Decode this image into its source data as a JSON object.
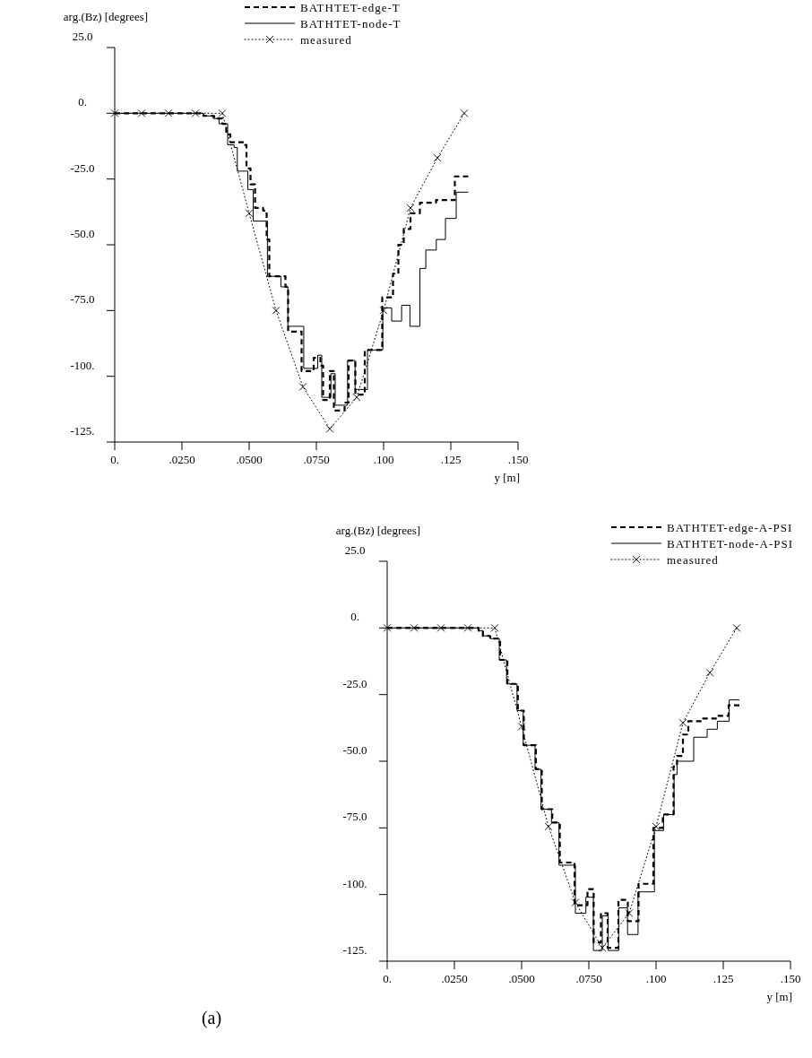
{
  "chart_data": [
    {
      "type": "line",
      "xlabel": "y [m]",
      "ylabel": "arg.(Bz) [degrees]",
      "xlim": [
        0,
        0.15
      ],
      "ylim": [
        -125,
        25
      ],
      "xticks": [
        {
          "value": 0,
          "label": "0."
        },
        {
          "value": 0.025,
          "label": ".0250"
        },
        {
          "value": 0.05,
          "label": ".0500"
        },
        {
          "value": 0.075,
          "label": ".0750"
        },
        {
          "value": 0.1,
          "label": ".100"
        },
        {
          "value": 0.125,
          "label": ".125"
        },
        {
          "value": 0.15,
          "label": ".150"
        }
      ],
      "yticks": [
        {
          "value": 25,
          "label": "25.0"
        },
        {
          "value": 0,
          "label": "0."
        },
        {
          "value": -25,
          "label": "-25.0"
        },
        {
          "value": -50,
          "label": "-50.0"
        },
        {
          "value": -75,
          "label": "-75.0"
        },
        {
          "value": -100,
          "label": "-100."
        },
        {
          "value": -125,
          "label": "-125."
        }
      ],
      "legend": "top",
      "grid": false,
      "series": [
        {
          "name": "BATHTET-edge-T",
          "type": "step",
          "color": "#000000",
          "line_style": "dashed",
          "marker": "none",
          "x": [
            0,
            0.033,
            0.037,
            0.04,
            0.0415,
            0.043,
            0.0484,
            0.049,
            0.0505,
            0.0522,
            0.0552,
            0.0565,
            0.0575,
            0.0635,
            0.0645,
            0.0695,
            0.074,
            0.0765,
            0.0775,
            0.08,
            0.0815,
            0.0855,
            0.087,
            0.0895,
            0.093,
            0.0995,
            0.1035,
            0.1055,
            0.1075,
            0.11,
            0.1135,
            0.1195,
            0.1265,
            0.1315
          ],
          "values": [
            0,
            -1,
            -2,
            -4,
            -8,
            -11,
            -12,
            -21,
            -27,
            -36,
            -37,
            -48,
            -62,
            -66,
            -83,
            -98,
            -93,
            -96,
            -109,
            -98,
            -113,
            -110,
            -94,
            -107,
            -90,
            -70,
            -61,
            -50,
            -44,
            -38,
            -34,
            -33,
            -24,
            -24
          ]
        },
        {
          "name": "BATHTET-node-T",
          "type": "step",
          "color": "#000000",
          "line_style": "solid",
          "marker": "none",
          "x": [
            0,
            0.033,
            0.0366,
            0.0388,
            0.042,
            0.0444,
            0.0456,
            0.0495,
            0.0515,
            0.0568,
            0.0618,
            0.0644,
            0.0703,
            0.0755,
            0.077,
            0.0804,
            0.082,
            0.0866,
            0.0894,
            0.094,
            0.0997,
            0.103,
            0.1067,
            0.1098,
            0.1135,
            0.1157,
            0.1196,
            0.123,
            0.127,
            0.1315
          ],
          "values": [
            0,
            -1,
            -2,
            -4,
            -12,
            -13,
            -22,
            -29,
            -41,
            -62,
            -66,
            -81,
            -97,
            -92,
            -108,
            -99,
            -111,
            -94,
            -105,
            -90,
            -74,
            -79,
            -73,
            -81,
            -59,
            -52,
            -48,
            -40,
            -30,
            -30
          ]
        },
        {
          "name": "measured",
          "type": "line",
          "color": "#000000",
          "line_style": "dotted",
          "marker": "cross",
          "x": [
            0,
            0.01,
            0.02,
            0.03,
            0.04,
            0.05,
            0.06,
            0.07,
            0.08,
            0.09,
            0.1,
            0.11,
            0.12,
            0.13
          ],
          "values": [
            0,
            0,
            0,
            0,
            0,
            -38,
            -75,
            -104,
            -120,
            -108,
            -75,
            -36,
            -17,
            0
          ]
        }
      ]
    },
    {
      "type": "line",
      "xlabel": "y [m]",
      "ylabel": "arg.(Bz) [degrees]",
      "xlim": [
        0,
        0.15
      ],
      "ylim": [
        -125,
        25
      ],
      "xticks": [
        {
          "value": 0,
          "label": "0."
        },
        {
          "value": 0.025,
          "label": ".0250"
        },
        {
          "value": 0.05,
          "label": ".0500"
        },
        {
          "value": 0.075,
          "label": ".0750"
        },
        {
          "value": 0.1,
          "label": ".100"
        },
        {
          "value": 0.125,
          "label": ".125"
        },
        {
          "value": 0.15,
          "label": ".150"
        }
      ],
      "yticks": [
        {
          "value": 25,
          "label": "25.0"
        },
        {
          "value": 0,
          "label": "0."
        },
        {
          "value": -25,
          "label": "-25.0"
        },
        {
          "value": -50,
          "label": "-50.0"
        },
        {
          "value": -75,
          "label": "-75.0"
        },
        {
          "value": -100,
          "label": "-100."
        },
        {
          "value": -125,
          "label": "-125."
        }
      ],
      "legend": "top right",
      "grid": false,
      "annotations": [
        "(a)"
      ],
      "series": [
        {
          "name": "BATHTET-edge-A-PSI",
          "type": "step",
          "color": "#000000",
          "line_style": "dashed",
          "marker": "none",
          "x": [
            0,
            0.034,
            0.0356,
            0.0383,
            0.042,
            0.0447,
            0.0486,
            0.0508,
            0.0553,
            0.0575,
            0.0614,
            0.0642,
            0.0697,
            0.0745,
            0.0768,
            0.0795,
            0.082,
            0.086,
            0.0895,
            0.0935,
            0.099,
            0.1025,
            0.1065,
            0.1078,
            0.11,
            0.112,
            0.1175,
            0.1228,
            0.127,
            0.131
          ],
          "values": [
            0,
            -1,
            -3,
            -4,
            -12,
            -21,
            -31,
            -44,
            -53,
            -68,
            -73,
            -88,
            -104,
            -98,
            -118,
            -107,
            -120,
            -102,
            -110,
            -96,
            -75,
            -70,
            -52,
            -48,
            -40,
            -35,
            -34,
            -33,
            -29,
            -29
          ]
        },
        {
          "name": "BATHTET-node-A-PSI",
          "type": "step",
          "color": "#000000",
          "line_style": "solid",
          "marker": "none",
          "x": [
            0,
            0.034,
            0.0356,
            0.0383,
            0.0417,
            0.0444,
            0.0483,
            0.0506,
            0.055,
            0.0572,
            0.0611,
            0.0639,
            0.07,
            0.0739,
            0.0767,
            0.08,
            0.0822,
            0.0861,
            0.0894,
            0.0933,
            0.0994,
            0.1028,
            0.1067,
            0.1078,
            0.114,
            0.119,
            0.1228,
            0.1272,
            0.131
          ],
          "values": [
            0,
            -1,
            -3,
            -4,
            -12,
            -21,
            -31,
            -44,
            -53,
            -68,
            -73,
            -89,
            -107,
            -101,
            -121,
            -108,
            -121,
            -105,
            -115,
            -99,
            -76,
            -70,
            -55,
            -50,
            -41,
            -38,
            -35,
            -27,
            -27
          ]
        },
        {
          "name": "measured",
          "type": "line",
          "color": "#000000",
          "line_style": "dotted",
          "marker": "cross",
          "x": [
            0,
            0.01,
            0.02,
            0.03,
            0.04,
            0.05,
            0.06,
            0.07,
            0.08,
            0.09,
            0.1,
            0.11,
            0.12,
            0.13
          ],
          "values": [
            0,
            0,
            0,
            0,
            0,
            -37,
            -74.5,
            -103,
            -120,
            -107,
            -74.5,
            -35.6,
            -16.8,
            0
          ]
        }
      ]
    }
  ]
}
